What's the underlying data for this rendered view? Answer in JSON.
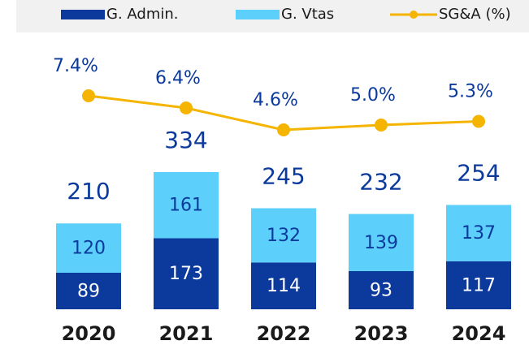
{
  "chart_data": {
    "type": "bar",
    "stacked": true,
    "categories": [
      "2020",
      "2021",
      "2022",
      "2023",
      "2024"
    ],
    "series": [
      {
        "name": "G. Admin.",
        "color": "#0b3a9c",
        "values": [
          89,
          173,
          114,
          93,
          117
        ]
      },
      {
        "name": "G. Vtas",
        "color": "#5ccffa",
        "values": [
          120,
          161,
          132,
          139,
          137
        ]
      },
      {
        "name": "SG&A (%)",
        "color": "#f4b400",
        "type": "line",
        "axis": "y2",
        "values": [
          7.4,
          6.4,
          4.6,
          5.0,
          5.3
        ],
        "value_labels": [
          "7.4%",
          "6.4%",
          "4.6%",
          "5.0%",
          "5.3%"
        ]
      }
    ],
    "totals": [
      210,
      334,
      245,
      232,
      254
    ],
    "legend": "top"
  }
}
